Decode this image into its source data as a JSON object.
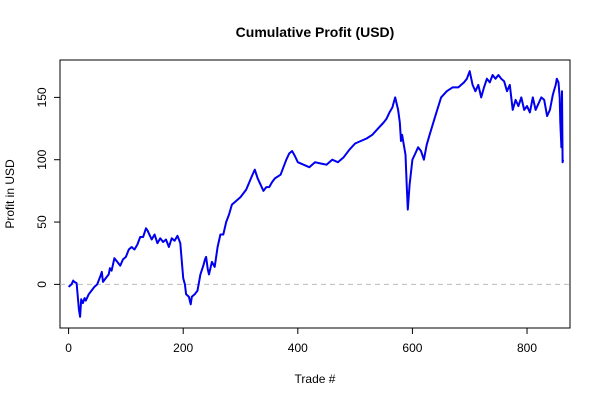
{
  "chart_data": {
    "type": "line",
    "title": "Cumulative Profit (USD)",
    "xlabel": "Trade #",
    "ylabel": "Profit in USD",
    "xlim": [
      -15,
      875
    ],
    "ylim": [
      -35,
      180
    ],
    "x_ticks": [
      0,
      200,
      400,
      600,
      800
    ],
    "y_ticks": [
      0,
      50,
      100,
      150
    ],
    "reference_line": {
      "y": 0,
      "style": "dashed",
      "color": "#bdbdbd"
    },
    "line_color": "#0000ee",
    "grid": false,
    "series": [
      {
        "x": [
          0,
          5,
          8,
          10,
          14,
          18,
          20,
          22,
          25,
          28,
          30,
          35,
          40,
          45,
          50,
          55,
          58,
          60,
          65,
          70,
          72,
          75,
          80,
          85,
          90,
          95,
          100,
          105,
          110,
          115,
          120,
          125,
          130,
          135,
          138,
          140,
          145,
          150,
          155,
          160,
          165,
          170,
          175,
          180,
          185,
          190,
          195,
          200,
          203,
          205,
          210,
          213,
          215,
          220,
          225,
          230,
          235,
          238,
          240,
          243,
          245,
          250,
          255,
          260,
          265,
          270,
          275,
          280,
          285,
          290,
          300,
          310,
          320,
          325,
          330,
          335,
          340,
          345,
          350,
          355,
          360,
          370,
          380,
          385,
          390,
          395,
          400,
          410,
          420,
          430,
          440,
          450,
          460,
          470,
          480,
          490,
          500,
          510,
          520,
          530,
          540,
          550,
          555,
          560,
          565,
          568,
          570,
          575,
          578,
          580,
          582,
          585,
          588,
          590,
          592,
          595,
          600,
          605,
          610,
          615,
          620,
          625,
          630,
          640,
          650,
          660,
          670,
          680,
          690,
          695,
          700,
          705,
          710,
          715,
          720,
          725,
          730,
          735,
          740,
          745,
          750,
          755,
          760,
          765,
          770,
          775,
          780,
          785,
          790,
          795,
          800,
          805,
          810,
          815,
          820,
          825,
          830,
          835,
          840,
          845,
          850,
          852,
          855,
          857,
          858,
          860,
          861,
          862,
          863
        ],
        "y": [
          -2,
          0,
          3,
          2,
          1,
          -20,
          -26,
          -12,
          -15,
          -11,
          -13,
          -8,
          -5,
          -2,
          0,
          6,
          10,
          2,
          5,
          8,
          13,
          11,
          21,
          18,
          15,
          20,
          22,
          28,
          30,
          28,
          32,
          38,
          38,
          45,
          43,
          41,
          36,
          40,
          33,
          37,
          34,
          36,
          30,
          37,
          35,
          39,
          33,
          5,
          0,
          -8,
          -10,
          -16,
          -10,
          -8,
          -5,
          8,
          15,
          20,
          22,
          12,
          8,
          18,
          14,
          30,
          40,
          40,
          50,
          56,
          64,
          66,
          70,
          76,
          87,
          92,
          85,
          80,
          75,
          78,
          78,
          82,
          85,
          88,
          100,
          105,
          107,
          103,
          98,
          96,
          94,
          98,
          97,
          96,
          100,
          98,
          102,
          108,
          113,
          115,
          117,
          120,
          125,
          130,
          133,
          138,
          142,
          147,
          150,
          140,
          130,
          115,
          120,
          112,
          104,
          80,
          60,
          80,
          100,
          105,
          110,
          107,
          100,
          112,
          120,
          135,
          150,
          155,
          158,
          158,
          162,
          165,
          171,
          160,
          155,
          160,
          150,
          158,
          165,
          162,
          168,
          165,
          168,
          165,
          163,
          155,
          160,
          140,
          148,
          143,
          150,
          140,
          143,
          138,
          150,
          140,
          145,
          150,
          148,
          135,
          140,
          152,
          160,
          165,
          162,
          150,
          130,
          110,
          155,
          98,
          100
        ]
      }
    ]
  }
}
